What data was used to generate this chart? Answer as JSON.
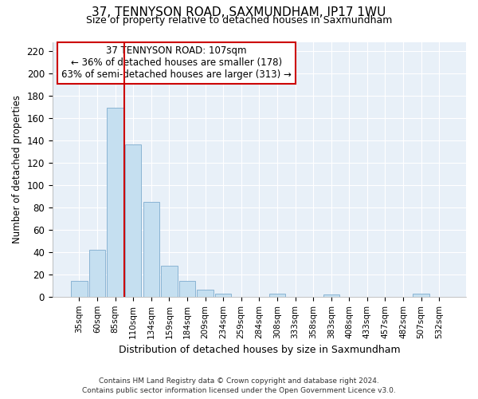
{
  "title": "37, TENNYSON ROAD, SAXMUNDHAM, IP17 1WU",
  "subtitle": "Size of property relative to detached houses in Saxmundham",
  "xlabel": "Distribution of detached houses by size in Saxmundham",
  "ylabel": "Number of detached properties",
  "bar_labels": [
    "35sqm",
    "60sqm",
    "85sqm",
    "110sqm",
    "134sqm",
    "159sqm",
    "184sqm",
    "209sqm",
    "234sqm",
    "259sqm",
    "284sqm",
    "308sqm",
    "333sqm",
    "358sqm",
    "383sqm",
    "408sqm",
    "433sqm",
    "457sqm",
    "482sqm",
    "507sqm",
    "532sqm"
  ],
  "bar_heights": [
    14,
    42,
    169,
    136,
    85,
    28,
    14,
    6,
    3,
    0,
    0,
    3,
    0,
    0,
    2,
    0,
    0,
    0,
    0,
    3,
    0
  ],
  "bar_color": "#c5dff0",
  "bar_edge_color": "#8ab4d4",
  "vline_index": 2.5,
  "vline_color": "#cc0000",
  "ylim": [
    0,
    228
  ],
  "yticks": [
    0,
    20,
    40,
    60,
    80,
    100,
    120,
    140,
    160,
    180,
    200,
    220
  ],
  "annotation_title": "37 TENNYSON ROAD: 107sqm",
  "annotation_line1": "← 36% of detached houses are smaller (178)",
  "annotation_line2": "63% of semi-detached houses are larger (313) →",
  "annotation_box_color": "#ffffff",
  "annotation_border_color": "#cc0000",
  "footer1": "Contains HM Land Registry data © Crown copyright and database right 2024.",
  "footer2": "Contains public sector information licensed under the Open Government Licence v3.0.",
  "plot_bg_color": "#e8f0f8",
  "fig_bg_color": "#ffffff",
  "grid_color": "#ffffff"
}
